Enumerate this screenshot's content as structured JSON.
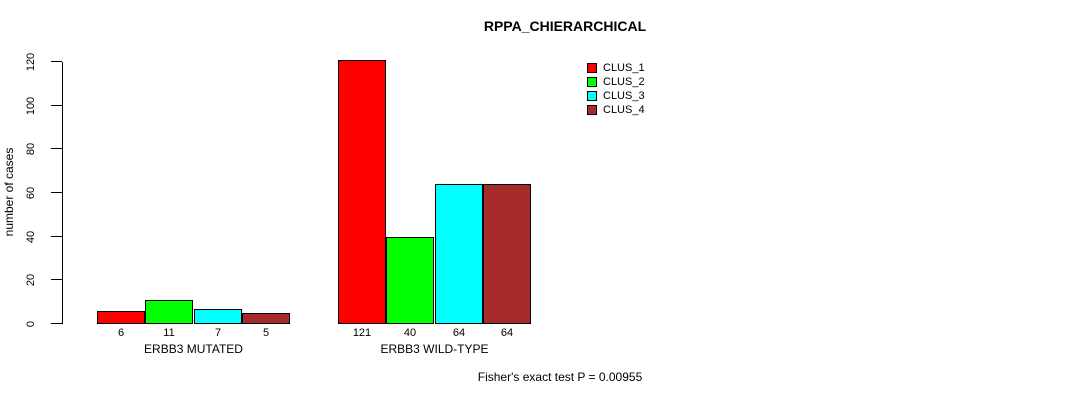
{
  "chart_data": {
    "type": "bar",
    "title": "RPPA_CHIERARCHICAL",
    "xlabel": "",
    "ylabel": "number of cases",
    "groups": [
      "ERBB3 MUTATED",
      "ERBB3 WILD-TYPE"
    ],
    "series": [
      {
        "name": "CLUS_1",
        "color": "#ff0000",
        "values": [
          6,
          121
        ]
      },
      {
        "name": "CLUS_2",
        "color": "#00ff00",
        "values": [
          11,
          40
        ]
      },
      {
        "name": "CLUS_3",
        "color": "#00ffff",
        "values": [
          7,
          64
        ]
      },
      {
        "name": "CLUS_4",
        "color": "#a52a2a",
        "values": [
          5,
          64
        ]
      }
    ],
    "ylim": [
      0,
      120
    ],
    "yticks": [
      0,
      20,
      40,
      60,
      80,
      100,
      120
    ],
    "grid": false,
    "legend_position": "top-right",
    "bar_value_labels_shown": true,
    "annotation": "Fisher's exact test P = 0.00955"
  }
}
